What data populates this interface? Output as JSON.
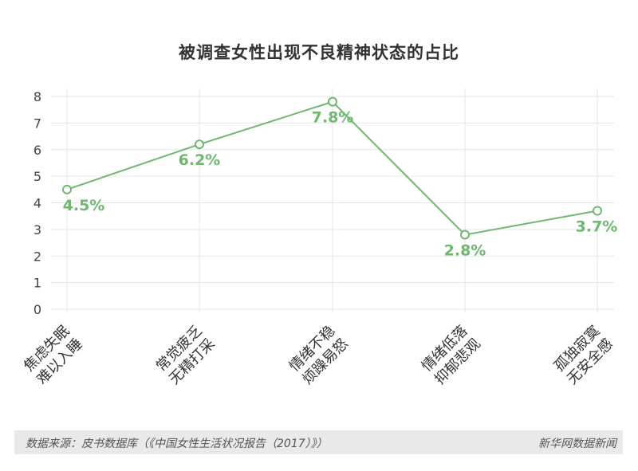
{
  "chart_data": {
    "type": "line",
    "title": "被调查女性出现不良精神状态的占比",
    "categories": [
      [
        "焦虑失眠",
        "难以入睡"
      ],
      [
        "常觉疲乏",
        "无精打采"
      ],
      [
        "情绪不稳",
        "烦躁易怒"
      ],
      [
        "情绪低落",
        "抑郁悲观"
      ],
      [
        "孤独寂寞",
        "无安全感"
      ]
    ],
    "values": [
      4.5,
      6.2,
      7.8,
      2.8,
      3.7
    ],
    "data_labels": [
      "4.5%",
      "6.2%",
      "7.8%",
      "2.8%",
      "3.7%"
    ],
    "yticks": [
      "0",
      "1",
      "2",
      "3",
      "4",
      "5",
      "6",
      "7",
      "8"
    ],
    "ylim": [
      0,
      8
    ],
    "grid": true,
    "xlabel": "",
    "ylabel": "",
    "colors": {
      "line": "#6fb86f",
      "label": "#6fb86f",
      "grid": "#e6e6e6",
      "tick": "#444444"
    }
  },
  "footer": {
    "source": "数据来源：皮书数据库（《中国女性生活状况报告（2017）》）",
    "credit": "新华网数据新闻"
  }
}
